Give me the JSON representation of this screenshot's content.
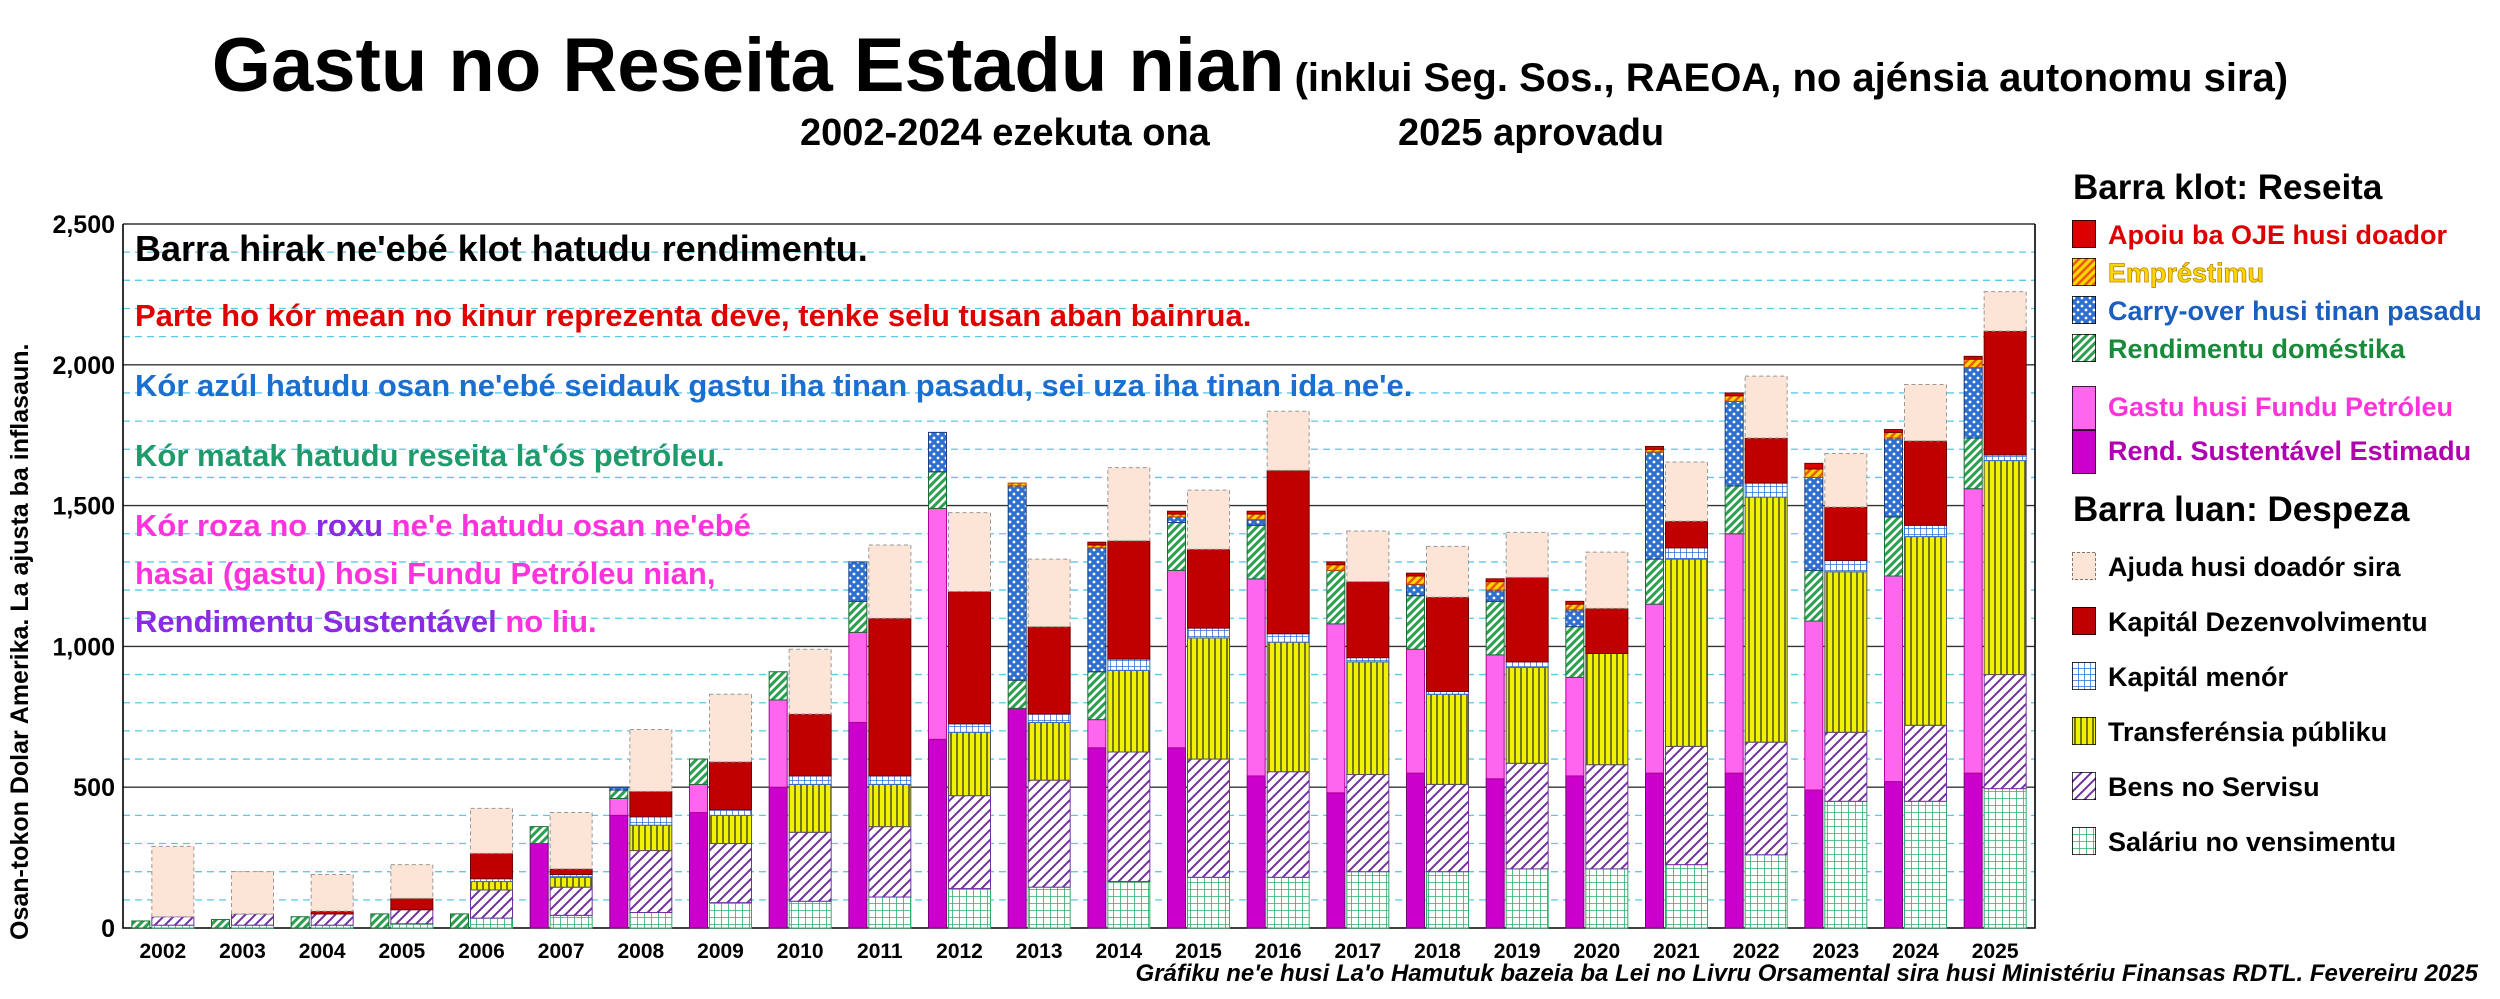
{
  "title": "Gastu no Reseita Estadu nian",
  "title_note": "(inklui Seg. Sos., RAEOA, no ajénsia autonomu sira)",
  "subtitle_left": "2002-2024 ezekuta ona",
  "subtitle_right": "2025 aprovadu",
  "ylabel": "Osan-tokon Dolar Amerika.   La ajusta ba inflasaun.",
  "footer": "Gráfiku ne'e husi La'o Hamutuk bazeia ba Lei no Livru Orsamental sira husi Ministériu Finansas RDTL.  Fevereiru 2025",
  "notes": {
    "n1": "Barra hirak ne'ebé klot hatudu rendimentu.",
    "n2": "Parte ho kór mean no kinur reprezenta deve, tenke selu tusan aban bainrua.",
    "n3": "Kór azúl hatudu osan ne'ebé seidauk gastu iha tinan pasadu, sei uza iha tinan ida ne'e.",
    "n4": "Kór matak hatudu reseita la'ós petróleu.",
    "n5a": "Kór roza",
    "n5b": " no ",
    "n5c": "roxu",
    "n5d": " ne'e hatudu osan ne'ebé",
    "n6": "hasai (gastu) hosi Fundu Petróleu nian,",
    "n7a": "Rendimentu Sustentável",
    "n7b": " no liu."
  },
  "legend": {
    "revenue_title": "Barra klot: Reseita",
    "rev_items": [
      {
        "label": "Apoiu ba OJE husi doador",
        "color": "#cc0000",
        "pattern": "solid"
      },
      {
        "label": "Empréstimu",
        "color": "#f5a623",
        "pattern": "diag"
      },
      {
        "label": "Carry-over husi tinan pasadu",
        "color": "#3a7bd5",
        "pattern": "dots"
      },
      {
        "label": "Rendimentu doméstika",
        "color": "#2aa050",
        "pattern": "diag"
      },
      {
        "label": "Gastu husi Fundu Petróleu",
        "color": "#ff66ee",
        "pattern": "solid"
      },
      {
        "label": "Rend. Sustentável Estimadu",
        "color": "#cc00cc",
        "pattern": "solid"
      }
    ],
    "expense_title": "Barra luan: Despeza",
    "exp_items": [
      {
        "label": "Ajuda husi doadór sira",
        "color": "#fce4d6",
        "pattern": "solid"
      },
      {
        "label": "Kapitál Dezenvolvimentu",
        "color": "#c00000",
        "pattern": "solid"
      },
      {
        "label": "Kapitál menór",
        "color": "#5b9bd5",
        "pattern": "grid"
      },
      {
        "label": "Transferénsia públiku",
        "color": "#e8e800",
        "pattern": "vlines"
      },
      {
        "label": "Bens no Servisu",
        "color": "#7030a0",
        "pattern": "diag"
      },
      {
        "label": "Saláriu no vensimentu",
        "color": "#3cb371",
        "pattern": "grid"
      }
    ]
  },
  "chart_data": {
    "type": "bar",
    "categories": [
      "2002",
      "2003",
      "2004",
      "2005",
      "2006",
      "2007",
      "2008",
      "2009",
      "2010",
      "2011",
      "2012",
      "2013",
      "2014",
      "2015",
      "2016",
      "2017",
      "2018",
      "2019",
      "2020",
      "2021",
      "2022",
      "2023",
      "2024",
      "2025"
    ],
    "ylim": [
      0,
      2500
    ],
    "yticks": [
      0,
      500,
      1000,
      1500,
      2000,
      2500
    ],
    "ytick_labels": [
      "0",
      "500",
      "1,000",
      "1,500",
      "2,000",
      "2,500"
    ],
    "grid": true,
    "revenue_series": [
      {
        "name": "Rend. Sustentável Estimadu",
        "values": [
          0,
          0,
          0,
          0,
          0,
          300,
          400,
          410,
          500,
          730,
          670,
          780,
          640,
          640,
          540,
          480,
          550,
          530,
          540,
          550,
          550,
          490,
          520,
          550
        ]
      },
      {
        "name": "Gastu husi Fundu Petróleu",
        "values": [
          0,
          0,
          0,
          0,
          0,
          0,
          60,
          100,
          310,
          320,
          820,
          0,
          100,
          630,
          700,
          600,
          440,
          440,
          350,
          600,
          850,
          600,
          730,
          1010
        ]
      },
      {
        "name": "Rendimentu doméstika",
        "values": [
          25,
          30,
          40,
          50,
          50,
          60,
          30,
          90,
          100,
          110,
          130,
          100,
          170,
          170,
          190,
          190,
          190,
          190,
          180,
          160,
          170,
          180,
          210,
          180
        ]
      },
      {
        "name": "Carry-over husi tinan pasadu",
        "values": [
          0,
          0,
          0,
          0,
          0,
          0,
          10,
          0,
          0,
          140,
          140,
          690,
          440,
          20,
          20,
          0,
          40,
          40,
          60,
          380,
          300,
          330,
          280,
          250
        ]
      },
      {
        "name": "Empréstimu",
        "values": [
          0,
          0,
          0,
          0,
          0,
          0,
          0,
          0,
          0,
          0,
          0,
          10,
          10,
          10,
          20,
          20,
          30,
          30,
          20,
          10,
          20,
          30,
          20,
          30
        ]
      },
      {
        "name": "Apoiu ba OJE husi doador",
        "values": [
          0,
          0,
          0,
          0,
          0,
          0,
          0,
          0,
          0,
          0,
          0,
          0,
          10,
          10,
          10,
          10,
          10,
          10,
          10,
          10,
          10,
          20,
          10,
          10
        ]
      }
    ],
    "expense_series": [
      {
        "name": "Saláriu no vensimentu",
        "values": [
          10,
          10,
          10,
          15,
          35,
          45,
          55,
          90,
          95,
          110,
          140,
          145,
          165,
          180,
          180,
          200,
          200,
          210,
          210,
          225,
          260,
          450,
          450,
          495
        ]
      },
      {
        "name": "Bens no Servisu",
        "values": [
          30,
          40,
          40,
          50,
          100,
          100,
          220,
          210,
          245,
          250,
          330,
          380,
          460,
          420,
          375,
          345,
          310,
          375,
          370,
          420,
          400,
          245,
          270,
          405
        ]
      },
      {
        "name": "Transferénsia públiku",
        "values": [
          0,
          0,
          0,
          0,
          30,
          35,
          90,
          100,
          170,
          150,
          225,
          205,
          290,
          430,
          460,
          400,
          320,
          340,
          395,
          665,
          870,
          570,
          670,
          760
        ]
      },
      {
        "name": "Kapitál menór",
        "values": [
          0,
          0,
          0,
          0,
          10,
          10,
          30,
          20,
          30,
          30,
          30,
          30,
          40,
          35,
          30,
          15,
          10,
          20,
          0,
          40,
          50,
          40,
          40,
          20
        ]
      },
      {
        "name": "Kapitál Dezenvolvimentu",
        "values": [
          0,
          0,
          10,
          40,
          90,
          20,
          90,
          170,
          220,
          560,
          470,
          310,
          420,
          280,
          580,
          270,
          335,
          300,
          160,
          95,
          160,
          190,
          300,
          440
        ]
      },
      {
        "name": "Ajuda husi doadór sira",
        "values": [
          250,
          150,
          130,
          120,
          160,
          200,
          220,
          240,
          230,
          260,
          280,
          240,
          260,
          210,
          210,
          180,
          180,
          160,
          200,
          210,
          220,
          190,
          200,
          140
        ]
      }
    ]
  }
}
